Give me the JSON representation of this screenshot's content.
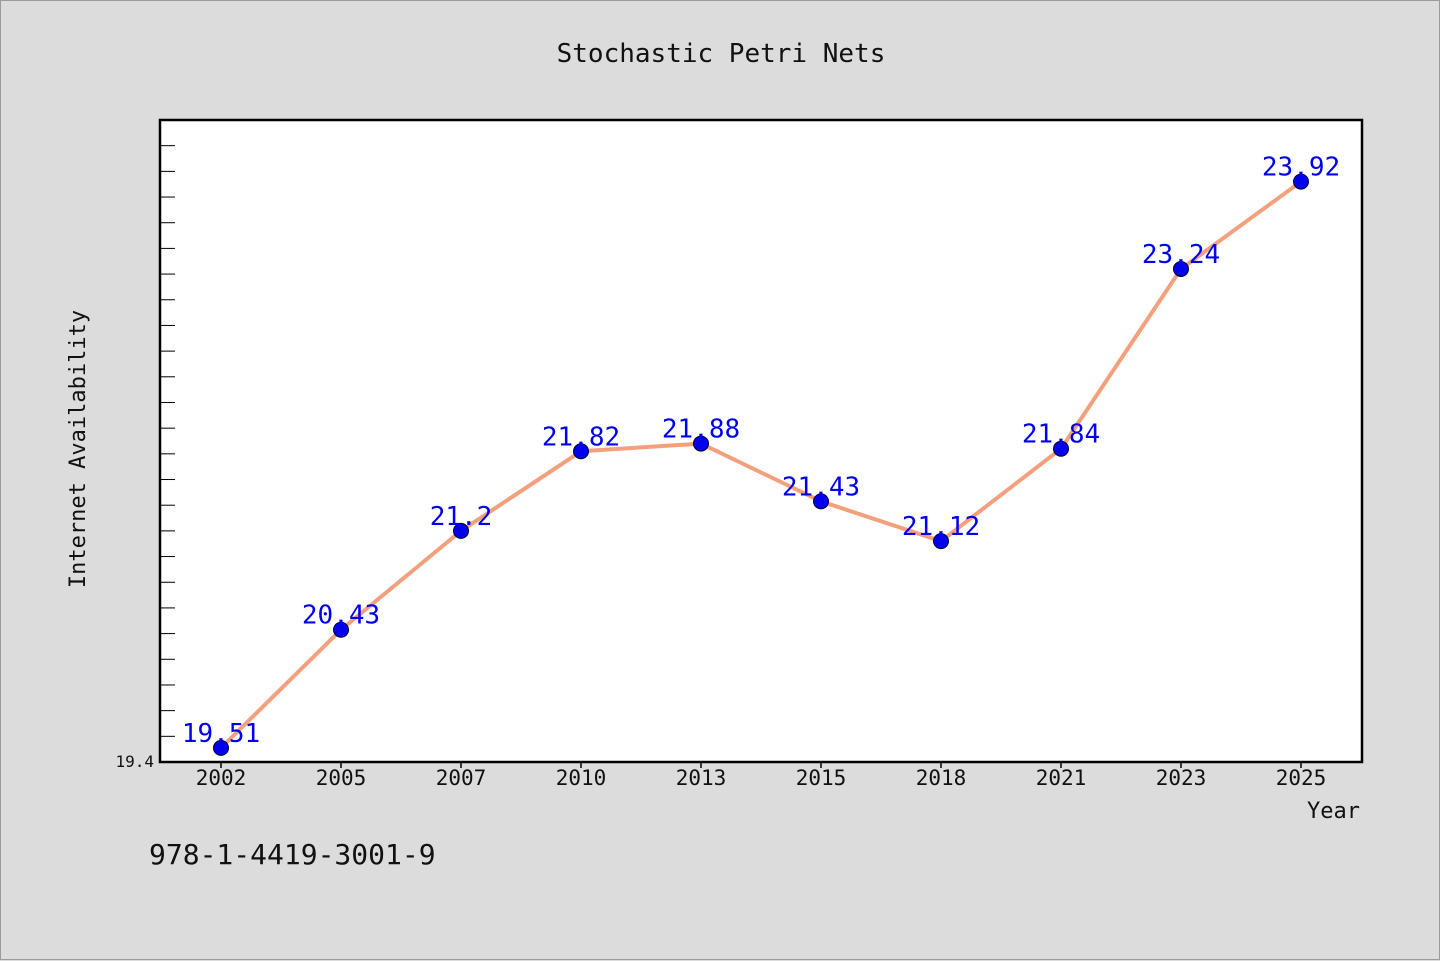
{
  "chart_data": {
    "type": "line",
    "title": "Stochastic Petri Nets",
    "xlabel": "Year",
    "ylabel": "Internet Availability",
    "categories": [
      "2002",
      "2005",
      "2007",
      "2010",
      "2013",
      "2015",
      "2018",
      "2021",
      "2023",
      "2025"
    ],
    "series": [
      {
        "values": [
          19.51,
          20.43,
          21.2,
          21.82,
          21.88,
          21.43,
          21.12,
          21.84,
          23.24,
          23.92
        ]
      }
    ],
    "data_labels": [
      "19.51",
      "20.43",
      "21.2",
      "21.82",
      "21.88",
      "21.43",
      "21.12",
      "21.84",
      "23.24",
      "23.92"
    ],
    "ylim": [
      19.4,
      24.4
    ],
    "y_min_label": "19.4",
    "grid": false,
    "legend": "none"
  },
  "footer_text": "978-1-4419-3001-9",
  "colors": {
    "background": "#dcdcdc",
    "plot_background": "#ffffff",
    "line": "#f4a07c",
    "marker": "#0000ee",
    "data_label": "#0000ee",
    "axis": "#000000"
  }
}
